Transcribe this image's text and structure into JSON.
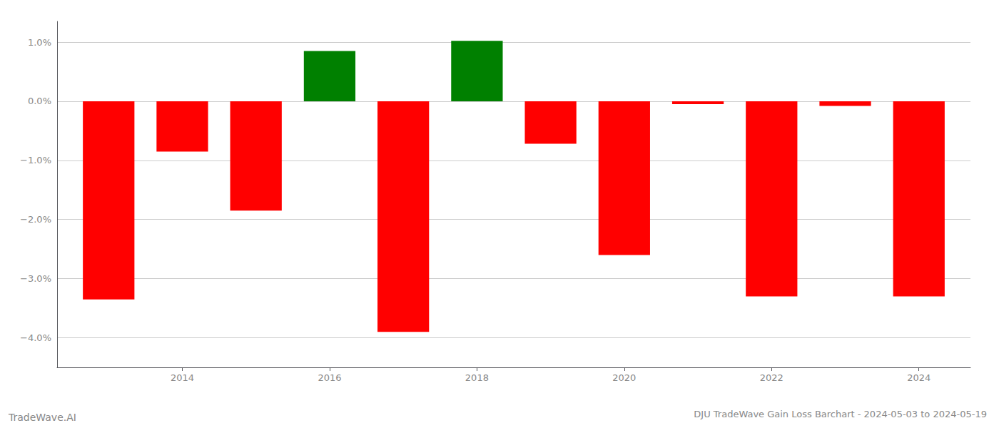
{
  "chart_data": {
    "type": "bar",
    "title": "DJU TradeWave Gain Loss Barchart - 2024-05-03 to 2024-05-19",
    "annotations": [
      "TradeWave.AI"
    ],
    "x": [
      2013,
      2014,
      2015,
      2016,
      2017,
      2018,
      2019,
      2020,
      2021,
      2022,
      2023,
      2024
    ],
    "values": [
      -3.35,
      -0.85,
      -1.85,
      0.85,
      -3.9,
      1.02,
      -0.72,
      -2.6,
      -0.05,
      -3.3,
      -0.08,
      -3.3
    ],
    "colors": [
      "red",
      "red",
      "red",
      "green",
      "red",
      "green",
      "red",
      "red",
      "red",
      "red",
      "red",
      "red"
    ],
    "xlim": [
      2012.3,
      2024.7
    ],
    "xticks": [
      2014,
      2016,
      2018,
      2020,
      2022,
      2024
    ],
    "ylim": [
      -4.5,
      1.35
    ],
    "yticks": [
      {
        "value": -4.0,
        "label": "−4.0%"
      },
      {
        "value": -3.0,
        "label": "−3.0%"
      },
      {
        "value": -2.0,
        "label": "−2.0%"
      },
      {
        "value": -1.0,
        "label": "−1.0%"
      },
      {
        "value": 0.0,
        "label": "0.0%"
      },
      {
        "value": 1.0,
        "label": "1.0%"
      }
    ],
    "grid": true
  }
}
